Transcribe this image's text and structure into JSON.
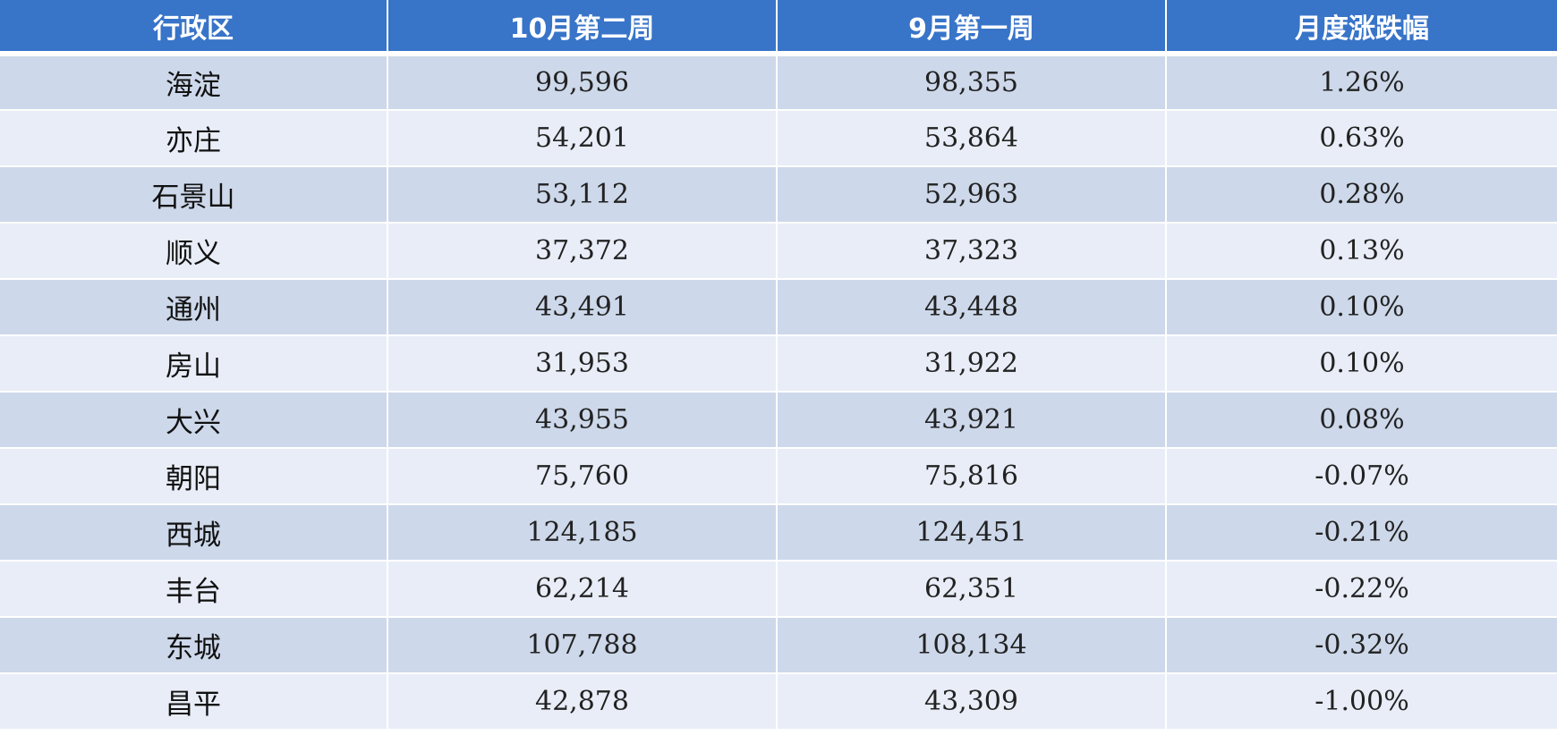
{
  "table": {
    "headers": [
      "行政区",
      "10月第二周",
      "9月第一周",
      "月度涨跌幅"
    ],
    "rows": [
      [
        "海淀",
        "99,596",
        "98,355",
        "1.26%"
      ],
      [
        "亦庄",
        "54,201",
        "53,864",
        "0.63%"
      ],
      [
        "石景山",
        "53,112",
        "52,963",
        "0.28%"
      ],
      [
        "顺义",
        "37,372",
        "37,323",
        "0.13%"
      ],
      [
        "通州",
        "43,491",
        "43,448",
        "0.10%"
      ],
      [
        "房山",
        "31,953",
        "31,922",
        "0.10%"
      ],
      [
        "大兴",
        "43,955",
        "43,921",
        "0.08%"
      ],
      [
        "朝阳",
        "75,760",
        "75,816",
        "-0.07%"
      ],
      [
        "西城",
        "124,185",
        "124,451",
        "-0.21%"
      ],
      [
        "丰台",
        "62,214",
        "62,351",
        "-0.22%"
      ],
      [
        "东城",
        "107,788",
        "108,134",
        "-0.32%"
      ],
      [
        "昌平",
        "42,878",
        "43,309",
        "-1.00%"
      ]
    ]
  },
  "colors": {
    "header_background": "#3874c8",
    "header_text": "#ffffff",
    "row_odd": "#cdd8ea",
    "row_even": "#e8edf7"
  }
}
